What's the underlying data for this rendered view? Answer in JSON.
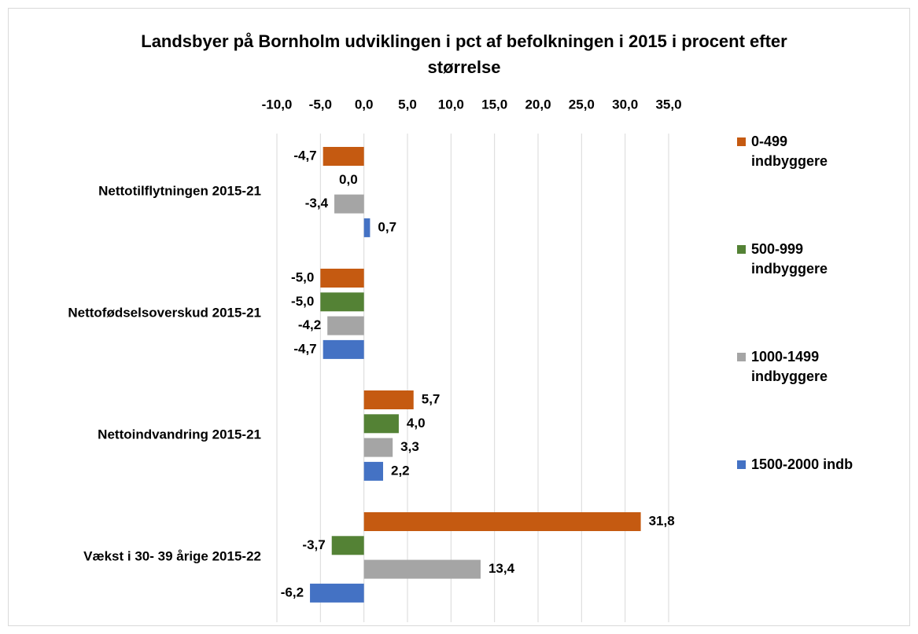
{
  "chart_data": {
    "type": "hbar",
    "title": "Landsbyer på Bornholm udviklingen i pct af befolkningen i 2015 i procent efter størrelse",
    "categories": [
      "Nettotilflytningen 2015-21",
      "Nettofødselsoverskud 2015-21",
      "Nettoindvandring 2015-21",
      "Vækst i 30- 39 årige 2015-22"
    ],
    "series": [
      {
        "name": "0-499 indbyggere",
        "color": "#c55a11",
        "values": [
          -4.7,
          -5.0,
          5.7,
          31.8
        ],
        "value_labels": [
          "-4,7",
          "-5,0",
          "5,7",
          "31,8"
        ]
      },
      {
        "name": "500-999 indbyggere",
        "color": "#548235",
        "values": [
          0.0,
          -5.0,
          4.0,
          -3.7
        ],
        "value_labels": [
          "0,0",
          "-5,0",
          "4,0",
          "-3,7"
        ]
      },
      {
        "name": "1000-1499 indbyggere",
        "color": "#a5a5a5",
        "values": [
          -3.4,
          -4.2,
          3.3,
          13.4
        ],
        "value_labels": [
          "-3,4",
          "-4,2",
          "3,3",
          "13,4"
        ]
      },
      {
        "name": "1500-2000 indb",
        "color": "#4472c4",
        "values": [
          0.7,
          -4.7,
          2.2,
          -6.2
        ],
        "value_labels": [
          "0,7",
          "-4,7",
          "2,2",
          "-6,2"
        ]
      }
    ],
    "xlim": [
      -10,
      35
    ],
    "xticks": [
      {
        "value": -10,
        "label": "-10,0"
      },
      {
        "value": -5,
        "label": "-5,0"
      },
      {
        "value": 0,
        "label": "0,0"
      },
      {
        "value": 5,
        "label": "5,0"
      },
      {
        "value": 10,
        "label": "10,0"
      },
      {
        "value": 15,
        "label": "15,0"
      },
      {
        "value": 20,
        "label": "20,0"
      },
      {
        "value": 25,
        "label": "25,0"
      },
      {
        "value": 30,
        "label": "30,0"
      },
      {
        "value": 35,
        "label": "35,0"
      }
    ],
    "grid": true,
    "legend": "right"
  }
}
